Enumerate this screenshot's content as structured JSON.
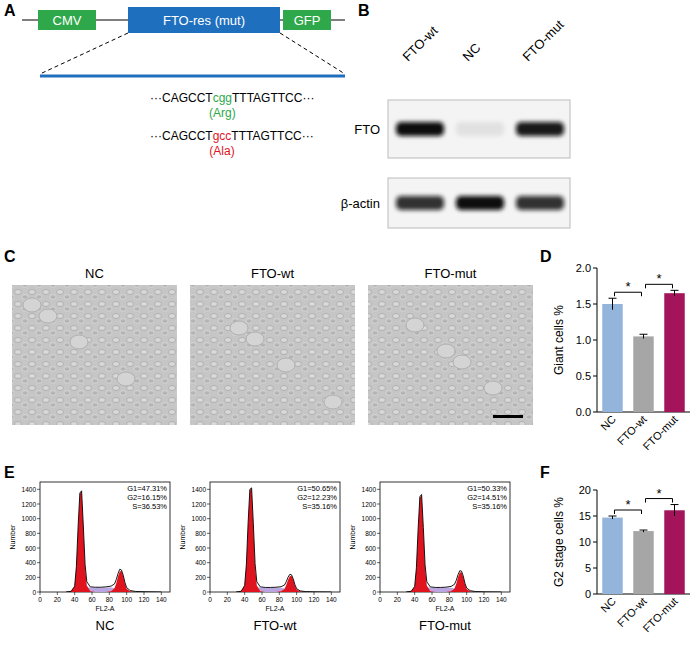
{
  "figure": {
    "panel_labels": [
      "A",
      "B",
      "C",
      "D",
      "E",
      "F"
    ],
    "construct": {
      "promoter": "CMV",
      "gene": "FTO-res (mut)",
      "reporter": "GFP",
      "sequences": [
        {
          "prefix": "···CAGCCT",
          "codon": "cgg",
          "suffix": "TTTAGTTCC···",
          "amino_acid": "(Arg)",
          "color": "#2ea84a"
        },
        {
          "prefix": "···CAGCCT",
          "codon": "gcc",
          "suffix": "TTTAGTTCC···",
          "amino_acid": "(Ala)",
          "color": "#e0141e"
        }
      ]
    },
    "blot": {
      "lanes": [
        "FTO-wt",
        "NC",
        "FTO-mut"
      ],
      "rows": [
        {
          "label": "FTO",
          "intensity": [
            1,
            0.08,
            0.95
          ]
        },
        {
          "label": "β-actin",
          "intensity": [
            0.85,
            1,
            0.85
          ]
        }
      ]
    },
    "micrographs": {
      "titles": [
        "NC",
        "FTO-wt",
        "FTO-mut"
      ]
    }
  },
  "chart_data": [
    {
      "type": "bar",
      "y_label": "Giant cells %",
      "categories": [
        "NC",
        "FTO-wt",
        "FTO-mut"
      ],
      "values": [
        1.5,
        1.05,
        1.65
      ],
      "errors": [
        0.08,
        0.03,
        0.04
      ],
      "colors": [
        "#93b5dc",
        "#a6a6a6",
        "#a3145a"
      ],
      "ylim": [
        0,
        2
      ],
      "yticks": [
        {
          "value": 0,
          "label": "0.0"
        },
        {
          "value": 0.5,
          "label": "0.5"
        },
        {
          "value": 1,
          "label": "1.0"
        },
        {
          "value": 1.5,
          "label": "1.5"
        },
        {
          "value": 2,
          "label": "2.0"
        }
      ],
      "significance": [
        {
          "pair": [
            0,
            1
          ],
          "label": "*"
        },
        {
          "pair": [
            1,
            2
          ],
          "label": "*"
        }
      ]
    },
    {
      "type": "bar",
      "y_label": "G2 stage cells %",
      "categories": [
        "NC",
        "FTO-wt",
        "FTO-mut"
      ],
      "values": [
        14.7,
        12.1,
        16.1
      ],
      "errors": [
        0.3,
        0.2,
        1.1
      ],
      "colors": [
        "#93b5dc",
        "#a6a6a6",
        "#a3145a"
      ],
      "ylim": [
        0,
        20
      ],
      "yticks": [
        0,
        5,
        10,
        15,
        20
      ],
      "significance": [
        {
          "pair": [
            0,
            1
          ],
          "label": "*"
        },
        {
          "pair": [
            1,
            2
          ],
          "label": "*"
        }
      ]
    },
    {
      "type": "line",
      "title": "NC",
      "x_label": "FL2-A",
      "y_label": "Number",
      "annotations": [
        "G1=47.31%",
        "G2=16.15%",
        "S=36.53%"
      ],
      "x": [
        30,
        36,
        40,
        42,
        44,
        46,
        48,
        50,
        52,
        54,
        58,
        64,
        70,
        76,
        82,
        86,
        88,
        90,
        92,
        94,
        96,
        98,
        100,
        104,
        110,
        120,
        140
      ],
      "series": [
        {
          "type": "area",
          "color": "#b9a6e0",
          "values": [
            0,
            0,
            0,
            0,
            5,
            15,
            30,
            50,
            60,
            62,
            62,
            62,
            62,
            62,
            60,
            50,
            42,
            32,
            22,
            12,
            6,
            2,
            0,
            0,
            0,
            0,
            0
          ]
        },
        {
          "type": "area",
          "color": "#e0141e",
          "values": [
            0,
            10,
            80,
            350,
            880,
            1340,
            1370,
            880,
            340,
            90,
            10,
            0,
            0,
            0,
            0,
            0,
            0,
            0,
            0,
            0,
            0,
            0,
            0,
            0,
            0,
            0,
            0
          ]
        },
        {
          "type": "area",
          "color": "#e0141e",
          "values": [
            0,
            0,
            0,
            0,
            0,
            0,
            0,
            0,
            0,
            0,
            0,
            0,
            0,
            0,
            10,
            50,
            120,
            210,
            280,
            285,
            215,
            115,
            45,
            8,
            0,
            0,
            0
          ]
        },
        {
          "type": "line",
          "color": "#000000",
          "values": [
            0,
            10,
            80,
            350,
            900,
            1350,
            1380,
            900,
            380,
            140,
            70,
            65,
            65,
            70,
            80,
            110,
            170,
            250,
            310,
            300,
            230,
            130,
            60,
            20,
            8,
            3,
            0
          ]
        }
      ],
      "xlim": [
        0,
        150
      ],
      "xticks": [
        0,
        20,
        40,
        60,
        80,
        100,
        120,
        140
      ],
      "ylim": [
        0,
        1500
      ],
      "yticks": [
        0,
        200,
        400,
        600,
        800,
        1000,
        1200,
        1400
      ]
    },
    {
      "type": "line",
      "title": "FTO-wt",
      "x_label": "FL2-A",
      "y_label": "Number",
      "annotations": [
        "G1=50.65%",
        "G2=12.23%",
        "S=35.16%"
      ],
      "x": [
        30,
        36,
        40,
        42,
        44,
        46,
        48,
        50,
        52,
        54,
        58,
        64,
        70,
        76,
        82,
        86,
        88,
        90,
        92,
        94,
        96,
        98,
        100,
        104,
        110,
        120,
        140
      ],
      "series": [
        {
          "type": "area",
          "color": "#b9a6e0",
          "values": [
            0,
            0,
            0,
            0,
            5,
            15,
            30,
            50,
            58,
            60,
            60,
            60,
            60,
            60,
            58,
            48,
            40,
            30,
            20,
            10,
            5,
            2,
            0,
            0,
            0,
            0,
            0
          ]
        },
        {
          "type": "area",
          "color": "#e0141e",
          "values": [
            0,
            10,
            90,
            380,
            930,
            1390,
            1410,
            910,
            350,
            90,
            10,
            0,
            0,
            0,
            0,
            0,
            0,
            0,
            0,
            0,
            0,
            0,
            0,
            0,
            0,
            0,
            0
          ]
        },
        {
          "type": "area",
          "color": "#e0141e",
          "values": [
            0,
            0,
            0,
            0,
            0,
            0,
            0,
            0,
            0,
            0,
            0,
            0,
            0,
            0,
            10,
            40,
            95,
            165,
            215,
            220,
            170,
            90,
            35,
            6,
            0,
            0,
            0
          ]
        },
        {
          "type": "line",
          "color": "#000000",
          "values": [
            0,
            10,
            90,
            380,
            950,
            1400,
            1420,
            930,
            390,
            140,
            70,
            62,
            62,
            65,
            72,
            95,
            140,
            200,
            240,
            235,
            180,
            100,
            45,
            15,
            6,
            2,
            0
          ]
        }
      ],
      "xlim": [
        0,
        150
      ],
      "xticks": [
        0,
        20,
        40,
        60,
        80,
        100,
        120,
        140
      ],
      "ylim": [
        0,
        1500
      ],
      "yticks": [
        0,
        200,
        400,
        600,
        800,
        1000,
        1200,
        1400
      ]
    },
    {
      "type": "line",
      "title": "FTO-mut",
      "x_label": "FL2-A",
      "y_label": "Number",
      "annotations": [
        "G1=50.33%",
        "G2=14.51%",
        "S=35.16%"
      ],
      "x": [
        30,
        36,
        40,
        42,
        44,
        46,
        48,
        50,
        52,
        54,
        58,
        64,
        70,
        76,
        82,
        86,
        88,
        90,
        92,
        94,
        96,
        98,
        100,
        104,
        110,
        120,
        140
      ],
      "series": [
        {
          "type": "area",
          "color": "#b9a6e0",
          "values": [
            0,
            0,
            0,
            0,
            5,
            15,
            30,
            50,
            58,
            60,
            60,
            60,
            60,
            60,
            58,
            48,
            40,
            30,
            20,
            10,
            5,
            2,
            0,
            0,
            0,
            0,
            0
          ]
        },
        {
          "type": "area",
          "color": "#e0141e",
          "values": [
            0,
            10,
            75,
            330,
            840,
            1290,
            1320,
            860,
            330,
            90,
            10,
            0,
            0,
            0,
            0,
            0,
            0,
            0,
            0,
            0,
            0,
            0,
            0,
            0,
            0,
            0,
            0
          ]
        },
        {
          "type": "area",
          "color": "#e0141e",
          "values": [
            0,
            0,
            0,
            0,
            0,
            0,
            0,
            0,
            0,
            0,
            0,
            0,
            0,
            0,
            10,
            48,
            112,
            200,
            265,
            270,
            205,
            110,
            42,
            7,
            0,
            0,
            0
          ]
        },
        {
          "type": "line",
          "color": "#000000",
          "values": [
            0,
            10,
            75,
            330,
            860,
            1300,
            1330,
            880,
            370,
            140,
            70,
            62,
            62,
            66,
            76,
            105,
            160,
            235,
            290,
            285,
            220,
            120,
            55,
            18,
            7,
            2,
            0
          ]
        }
      ],
      "xlim": [
        0,
        150
      ],
      "xticks": [
        0,
        20,
        40,
        60,
        80,
        100,
        120,
        140
      ],
      "ylim": [
        0,
        1500
      ],
      "yticks": [
        0,
        200,
        400,
        600,
        800,
        1000,
        1200,
        1400
      ]
    }
  ]
}
